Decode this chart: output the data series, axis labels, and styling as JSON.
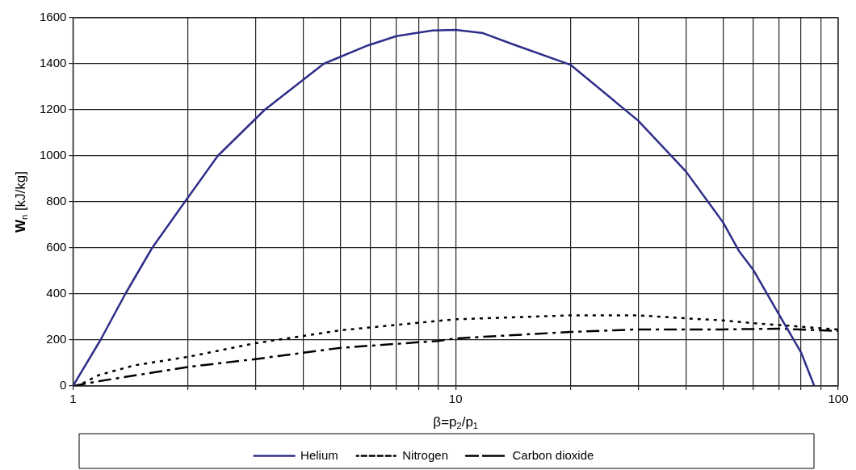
{
  "chart_data": {
    "type": "line",
    "xlabel": "β=p$_{2}$/p$_{1}$",
    "ylabel": "W$_{n}$ [kJ/kg]",
    "log": "x",
    "grid": true,
    "legend": "bottom",
    "marker": "none",
    "xlim": [
      1,
      100
    ],
    "xticks": [
      1,
      {
        "value": 2,
        "label": null
      },
      {
        "value": 3,
        "label": null
      },
      {
        "value": 4,
        "label": null
      },
      {
        "value": 5,
        "label": null
      },
      {
        "value": 6,
        "label": null
      },
      {
        "value": 7,
        "label": null
      },
      {
        "value": 8,
        "label": null
      },
      {
        "value": 9,
        "label": null
      },
      10,
      {
        "value": 20,
        "label": null
      },
      {
        "value": 30,
        "label": null
      },
      {
        "value": 40,
        "label": null
      },
      {
        "value": 50,
        "label": null
      },
      {
        "value": 60,
        "label": null
      },
      {
        "value": 70,
        "label": null
      },
      {
        "value": 80,
        "label": null
      },
      {
        "value": 90,
        "label": null
      },
      100
    ],
    "ylim": [
      0,
      1600
    ],
    "yticks": [
      0,
      200,
      400,
      600,
      800,
      1000,
      1200,
      1400,
      1600
    ],
    "series": [
      {
        "name": "Helium",
        "color": "#2e2e8a",
        "line_style": "solid",
        "x": [
          1,
          1.18,
          1.37,
          1.61,
          1.96,
          2.39,
          3.17,
          4.52,
          5.9,
          7,
          8.7,
          10,
          11.8,
          14.1,
          20,
          30,
          40,
          50,
          55,
          60,
          70,
          80,
          86.6
        ],
        "values": [
          0,
          200,
          400,
          600,
          800,
          1000,
          1200,
          1400,
          1480,
          1520,
          1545,
          1547,
          1533,
          1485,
          1395,
          1153,
          932,
          711,
          587,
          504,
          311,
          145,
          0
        ]
      },
      {
        "name": "Nitrogen",
        "color": "#000000",
        "line_style": "dotted",
        "x": [
          1.06,
          1.17,
          1.45,
          2,
          3,
          5,
          9,
          10,
          20,
          30,
          40,
          50,
          60,
          73,
          100
        ],
        "values": [
          12,
          48,
          90,
          127,
          186,
          242,
          283,
          290,
          307,
          307,
          294,
          285,
          273,
          263,
          245
        ]
      },
      {
        "name": "Carbon dioxide",
        "color": "#000000",
        "line_style": "dashed",
        "x": [
          1,
          1.17,
          2,
          3,
          5,
          9,
          10,
          20,
          30,
          50,
          70,
          100
        ],
        "values": [
          0,
          21,
          83,
          117,
          166,
          196,
          207,
          235,
          246,
          246,
          249,
          239
        ]
      }
    ]
  }
}
